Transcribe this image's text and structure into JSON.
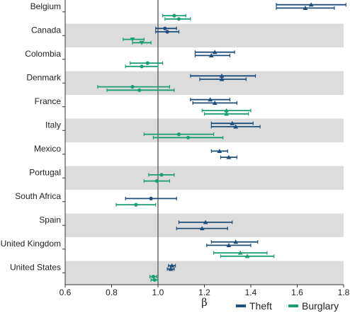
{
  "chart_data": {
    "type": "forest",
    "xlabel": "β",
    "xlim": [
      0.6,
      1.8
    ],
    "xticks": [
      "0.6",
      "0.8",
      "1.0",
      "1.2",
      "1.4",
      "1.6",
      "1.8"
    ],
    "reference_line": 1.0,
    "shaded_rows": [
      "Canada",
      "Denmark",
      "Italy",
      "Portugal",
      "Spain",
      "United States"
    ],
    "colors": {
      "Theft": "#1f4e79",
      "Burglary": "#1a9e76",
      "band": "#dcdcdc"
    },
    "legend": {
      "position": "bottom-right",
      "entries": [
        "Theft",
        "Burglary"
      ]
    },
    "countries": [
      {
        "name": "Belgium",
        "estimates": [
          {
            "series": "Theft",
            "marker": "triangle",
            "value": 1.66,
            "low": 1.51,
            "high": 1.81
          },
          {
            "series": "Theft",
            "marker": "triangle",
            "value": 1.635,
            "low": 1.51,
            "high": 1.76
          },
          {
            "series": "Burglary",
            "marker": "circle",
            "value": 1.07,
            "low": 1.02,
            "high": 1.12
          },
          {
            "series": "Burglary",
            "marker": "circle",
            "value": 1.09,
            "low": 1.03,
            "high": 1.14
          }
        ]
      },
      {
        "name": "Canada",
        "estimates": [
          {
            "series": "Theft",
            "marker": "circle",
            "value": 1.03,
            "low": 0.99,
            "high": 1.08
          },
          {
            "series": "Theft",
            "marker": "circle",
            "value": 1.04,
            "low": 0.99,
            "high": 1.09
          },
          {
            "series": "Burglary",
            "marker": "triangle-down",
            "value": 0.89,
            "low": 0.85,
            "high": 0.94
          },
          {
            "series": "Burglary",
            "marker": "triangle-down",
            "value": 0.93,
            "low": 0.89,
            "high": 0.97
          }
        ]
      },
      {
        "name": "Colombia",
        "estimates": [
          {
            "series": "Theft",
            "marker": "triangle",
            "value": 1.245,
            "low": 1.16,
            "high": 1.33
          },
          {
            "series": "Theft",
            "marker": "triangle",
            "value": 1.23,
            "low": 1.16,
            "high": 1.31
          },
          {
            "series": "Burglary",
            "marker": "circle",
            "value": 0.955,
            "low": 0.88,
            "high": 1.02
          },
          {
            "series": "Burglary",
            "marker": "circle",
            "value": 0.93,
            "low": 0.86,
            "high": 1.0
          }
        ]
      },
      {
        "name": "Denmark",
        "estimates": [
          {
            "series": "Theft",
            "marker": "triangle",
            "value": 1.275,
            "low": 1.14,
            "high": 1.42
          },
          {
            "series": "Theft",
            "marker": "triangle",
            "value": 1.275,
            "low": 1.18,
            "high": 1.38
          },
          {
            "series": "Burglary",
            "marker": "circle",
            "value": 0.89,
            "low": 0.74,
            "high": 1.05
          },
          {
            "series": "Burglary",
            "marker": "circle",
            "value": 0.92,
            "low": 0.78,
            "high": 1.07
          }
        ]
      },
      {
        "name": "France",
        "estimates": [
          {
            "series": "Theft",
            "marker": "triangle",
            "value": 1.225,
            "low": 1.14,
            "high": 1.31
          },
          {
            "series": "Theft",
            "marker": "triangle",
            "value": 1.245,
            "low": 1.15,
            "high": 1.34
          },
          {
            "series": "Burglary",
            "marker": "triangle",
            "value": 1.295,
            "low": 1.19,
            "high": 1.4
          },
          {
            "series": "Burglary",
            "marker": "triangle",
            "value": 1.295,
            "low": 1.2,
            "high": 1.39
          }
        ]
      },
      {
        "name": "Italy",
        "estimates": [
          {
            "series": "Theft",
            "marker": "triangle",
            "value": 1.32,
            "low": 1.23,
            "high": 1.41
          },
          {
            "series": "Theft",
            "marker": "triangle",
            "value": 1.335,
            "low": 1.23,
            "high": 1.44
          },
          {
            "series": "Burglary",
            "marker": "circle",
            "value": 1.09,
            "low": 0.94,
            "high": 1.24
          },
          {
            "series": "Burglary",
            "marker": "circle",
            "value": 1.13,
            "low": 0.98,
            "high": 1.28
          }
        ]
      },
      {
        "name": "Mexico",
        "estimates": [
          {
            "series": "Theft",
            "marker": "triangle",
            "value": 1.265,
            "low": 1.23,
            "high": 1.3
          },
          {
            "series": "Theft",
            "marker": "triangle",
            "value": 1.305,
            "low": 1.27,
            "high": 1.34
          }
        ]
      },
      {
        "name": "Portugal",
        "estimates": [
          {
            "series": "Burglary",
            "marker": "circle",
            "value": 1.015,
            "low": 0.96,
            "high": 1.07
          },
          {
            "series": "Burglary",
            "marker": "circle",
            "value": 0.995,
            "low": 0.94,
            "high": 1.05
          }
        ]
      },
      {
        "name": "South Africa",
        "estimates": [
          {
            "series": "Theft",
            "marker": "circle",
            "value": 0.97,
            "low": 0.86,
            "high": 1.08
          },
          {
            "series": "Burglary",
            "marker": "circle",
            "value": 0.905,
            "low": 0.82,
            "high": 0.99
          }
        ]
      },
      {
        "name": "Spain",
        "estimates": [
          {
            "series": "Theft",
            "marker": "triangle",
            "value": 1.205,
            "low": 1.09,
            "high": 1.32
          },
          {
            "series": "Theft",
            "marker": "triangle",
            "value": 1.19,
            "low": 1.08,
            "high": 1.3
          }
        ]
      },
      {
        "name": "United Kingdom",
        "estimates": [
          {
            "series": "Theft",
            "marker": "triangle",
            "value": 1.335,
            "low": 1.23,
            "high": 1.43
          },
          {
            "series": "Theft",
            "marker": "triangle",
            "value": 1.305,
            "low": 1.21,
            "high": 1.4
          },
          {
            "series": "Burglary",
            "marker": "triangle",
            "value": 1.355,
            "low": 1.24,
            "high": 1.47
          },
          {
            "series": "Burglary",
            "marker": "triangle",
            "value": 1.385,
            "low": 1.27,
            "high": 1.5
          }
        ]
      },
      {
        "name": "United States",
        "estimates": [
          {
            "series": "Theft",
            "marker": "triangle",
            "value": 1.06,
            "low": 1.045,
            "high": 1.075
          },
          {
            "series": "Theft",
            "marker": "triangle",
            "value": 1.055,
            "low": 1.04,
            "high": 1.07
          },
          {
            "series": "Burglary",
            "marker": "circle",
            "value": 0.98,
            "low": 0.965,
            "high": 0.995
          },
          {
            "series": "Burglary",
            "marker": "circle",
            "value": 0.985,
            "low": 0.97,
            "high": 1.0
          }
        ]
      }
    ]
  }
}
